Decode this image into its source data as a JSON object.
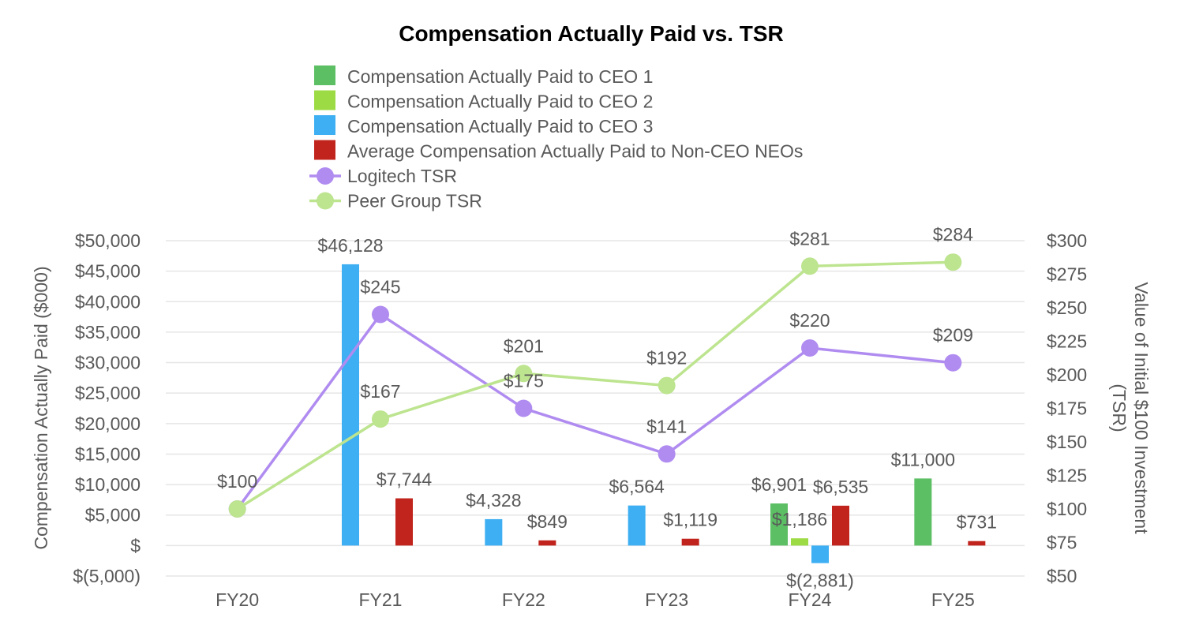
{
  "chart_data": {
    "type": "bar",
    "title": "Compensation Actually Paid vs. TSR",
    "categories": [
      "FY20",
      "FY21",
      "FY22",
      "FY23",
      "FY24",
      "FY25"
    ],
    "ylabel": "Compensation Actually Paid ($000)",
    "y2label_line1": "Value of Initial $100 Investment",
    "y2label_line2": "(TSR)",
    "ylim": [
      -5000,
      50000
    ],
    "y2lim": [
      50,
      300
    ],
    "y_ticks": [
      -5000,
      0,
      5000,
      10000,
      15000,
      20000,
      25000,
      30000,
      35000,
      40000,
      45000,
      50000
    ],
    "y_tick_labels": [
      "$(5,000)",
      "$",
      "$5,000",
      "$10,000",
      "$15,000",
      "$20,000",
      "$25,000",
      "$30,000",
      "$35,000",
      "$40,000",
      "$45,000",
      "$50,000"
    ],
    "y2_ticks": [
      50,
      75,
      100,
      125,
      150,
      175,
      200,
      225,
      250,
      275,
      300
    ],
    "y2_tick_labels": [
      "$50",
      "$75",
      "$100",
      "$125",
      "$150",
      "$175",
      "$200",
      "$225",
      "$250",
      "$275",
      "$300"
    ],
    "legend_position": "top",
    "bar_series": [
      {
        "name": "Compensation Actually Paid to CEO 1",
        "color": "#5cbf64",
        "values": [
          null,
          null,
          null,
          null,
          6901,
          11000
        ],
        "labels": [
          "",
          "",
          "",
          "",
          "$6,901",
          "$11,000"
        ]
      },
      {
        "name": "Compensation Actually Paid to CEO 2",
        "color": "#9ddb45",
        "values": [
          null,
          null,
          null,
          null,
          1186,
          null
        ],
        "labels": [
          "",
          "",
          "",
          "",
          "$1,186",
          ""
        ]
      },
      {
        "name": "Compensation Actually Paid to CEO 3",
        "color": "#3daff2",
        "values": [
          null,
          46128,
          4328,
          6564,
          -2881,
          null
        ],
        "labels": [
          "",
          "$46,128",
          "$4,328",
          "$6,564",
          "$(2,881)",
          ""
        ]
      },
      {
        "name": "Average Compensation Actually Paid to Non-CEO NEOs",
        "color": "#c1241c",
        "values": [
          null,
          7744,
          849,
          1119,
          6535,
          731
        ],
        "labels": [
          "",
          "$7,744",
          "$849",
          "$1,119",
          "$6,535",
          "$731"
        ]
      }
    ],
    "line_series": [
      {
        "name": "Logitech TSR",
        "color": "#b08cf0",
        "values": [
          100,
          245,
          175,
          141,
          220,
          209
        ],
        "labels": [
          "$100",
          "$245",
          "$175",
          "$141",
          "$220",
          "$209"
        ]
      },
      {
        "name": "Peer Group TSR",
        "color": "#bde48f",
        "values": [
          100,
          167,
          201,
          192,
          281,
          284
        ],
        "labels": [
          "",
          "$167",
          "$201",
          "$192",
          "$281",
          "$284"
        ]
      }
    ]
  }
}
